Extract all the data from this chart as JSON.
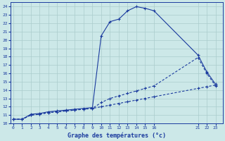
{
  "title": "Graphe des températures (°c)",
  "bg_color": "#cce8e8",
  "grid_color": "#aacccc",
  "line_color": "#1a3a9e",
  "ylim": [
    10.0,
    24.5
  ],
  "yticks": [
    10,
    11,
    12,
    13,
    14,
    15,
    16,
    17,
    18,
    19,
    20,
    21,
    22,
    23,
    24
  ],
  "xlim": [
    -0.3,
    23.8
  ],
  "xticks": [
    0,
    1,
    2,
    3,
    4,
    5,
    6,
    7,
    8,
    9,
    10,
    11,
    12,
    13,
    14,
    15,
    16,
    21,
    22,
    23
  ],
  "line1_x": [
    0,
    1,
    2,
    3,
    4,
    5,
    6,
    7,
    8,
    9,
    10,
    11,
    12,
    13,
    14,
    15,
    16,
    21,
    22,
    23
  ],
  "line1_y": [
    10.5,
    10.5,
    11.1,
    11.2,
    11.4,
    11.5,
    11.6,
    11.7,
    11.8,
    11.9,
    20.5,
    22.2,
    22.5,
    23.5,
    24.0,
    23.8,
    23.5,
    18.2,
    16.2,
    14.7
  ],
  "line2_x": [
    0,
    1,
    2,
    3,
    4,
    5,
    6,
    7,
    8,
    9,
    10,
    11,
    12,
    13,
    14,
    15,
    16,
    21,
    22,
    23
  ],
  "line2_y": [
    10.5,
    10.5,
    11.0,
    11.1,
    11.3,
    11.4,
    11.5,
    11.6,
    11.7,
    11.8,
    12.5,
    13.0,
    13.3,
    13.6,
    13.9,
    14.2,
    14.5,
    17.9,
    16.0,
    14.5
  ],
  "line3_x": [
    0,
    1,
    2,
    3,
    4,
    5,
    6,
    7,
    8,
    9,
    10,
    11,
    12,
    13,
    14,
    15,
    16,
    21,
    22,
    23
  ],
  "line3_y": [
    10.5,
    10.5,
    11.0,
    11.1,
    11.3,
    11.4,
    11.5,
    11.6,
    11.7,
    11.8,
    12.0,
    12.2,
    12.4,
    12.6,
    12.8,
    13.0,
    13.2,
    14.2,
    14.4,
    14.6
  ]
}
